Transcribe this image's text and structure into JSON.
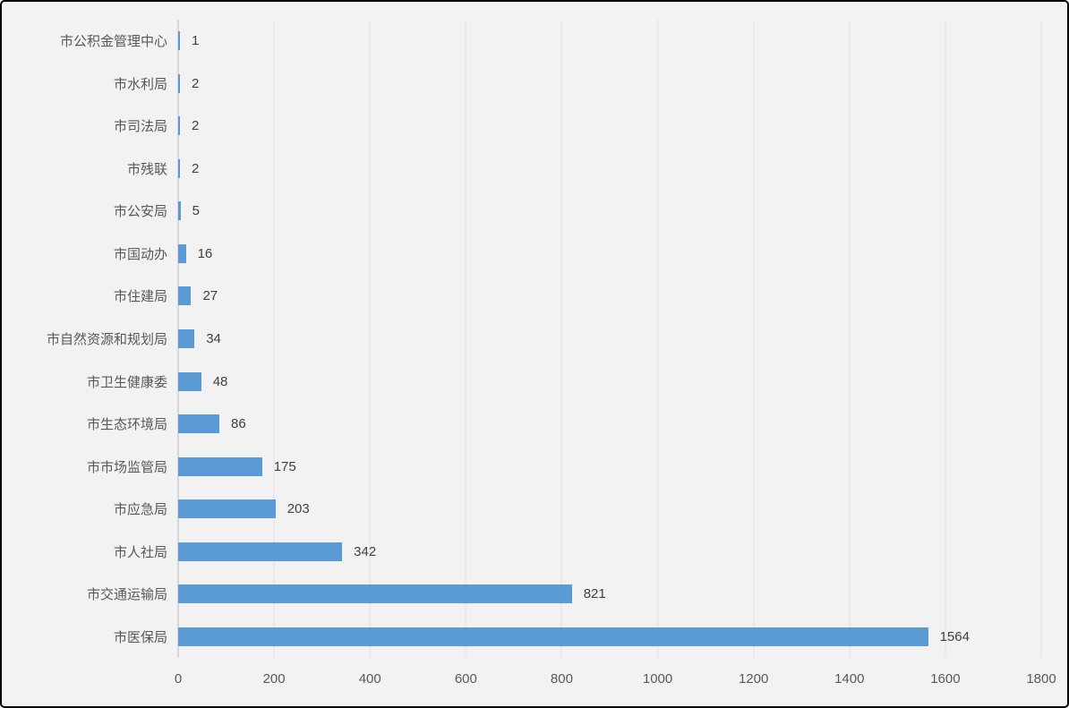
{
  "chart_data": {
    "type": "bar",
    "orientation": "horizontal",
    "title": "",
    "xlabel": "",
    "ylabel": "",
    "categories": [
      "市公积金管理中心",
      "市水利局",
      "市司法局",
      "市残联",
      "市公安局",
      "市国动办",
      "市住建局",
      "市自然资源和规划局",
      "市卫生健康委",
      "市生态环境局",
      "市市场监管局",
      "市应急局",
      "市人社局",
      "市交通运输局",
      "市医保局"
    ],
    "values": [
      1,
      2,
      2,
      2,
      5,
      16,
      27,
      34,
      48,
      86,
      175,
      203,
      342,
      821,
      1564
    ],
    "value_labels": [
      "1",
      "2",
      "2",
      "2",
      "5",
      "16",
      "27",
      "34",
      "48",
      "86",
      "175",
      "203",
      "342",
      "821",
      "1564"
    ],
    "xlim": [
      0,
      1800
    ],
    "xticks": [
      0,
      200,
      400,
      600,
      800,
      1000,
      1200,
      1400,
      1600,
      1800
    ],
    "xtick_labels": [
      "0",
      "200",
      "400",
      "600",
      "800",
      "1000",
      "1200",
      "1400",
      "1600",
      "1800"
    ],
    "grid": true,
    "legend": "none",
    "colors": {
      "bar": "#5B9BD5",
      "background": "#F2F2F2",
      "gridline": "#E3E3E3",
      "axis_line": "#D6D6D6",
      "category_label": "#595959",
      "tick_label": "#595959",
      "value_label": "#404040",
      "border": "#000000"
    }
  }
}
